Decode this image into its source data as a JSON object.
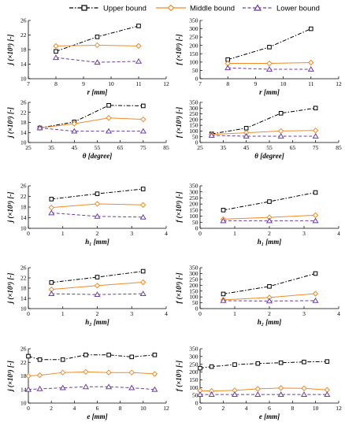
{
  "legend": {
    "upper": "Upper bound",
    "middle": "Middle bound",
    "lower": "Lower bound"
  },
  "style": {
    "upper_color": "#000000",
    "middle_color": "#f08a28",
    "lower_color": "#6a3fa0",
    "panel_bg": "#ffffff",
    "axis_color": "#000000"
  },
  "chart_data": [
    {
      "type": "line",
      "xlabel": "r [mm]",
      "ylabel": "j (×10³) [-]",
      "xlim": [
        7,
        12
      ],
      "xticks": [
        7,
        8,
        9,
        10,
        11,
        12
      ],
      "ylim": [
        10,
        26
      ],
      "yticks": [
        10,
        14,
        18,
        22,
        26
      ],
      "grid": false,
      "series": [
        {
          "name": "Upper bound",
          "x": [
            8,
            9.5,
            11
          ],
          "y": [
            17.5,
            21.5,
            24.5
          ]
        },
        {
          "name": "Middle bound",
          "x": [
            8,
            9.5,
            11
          ],
          "y": [
            19,
            19.2,
            19
          ]
        },
        {
          "name": "Lower bound",
          "x": [
            8,
            9.5,
            11
          ],
          "y": [
            15.8,
            14.5,
            14.8
          ]
        }
      ]
    },
    {
      "type": "line",
      "xlabel": "r [mm]",
      "ylabel": "f (×10³) [-]",
      "xlim": [
        7,
        12
      ],
      "xticks": [
        7,
        8,
        9,
        10,
        11,
        12
      ],
      "ylim": [
        0,
        350
      ],
      "yticks": [
        0,
        50,
        100,
        150,
        200,
        250,
        300,
        350
      ],
      "grid": false,
      "series": [
        {
          "name": "Upper bound",
          "x": [
            8,
            9.5,
            11
          ],
          "y": [
            115,
            190,
            300
          ]
        },
        {
          "name": "Middle bound",
          "x": [
            8,
            9.5,
            11
          ],
          "y": [
            92,
            92,
            97
          ]
        },
        {
          "name": "Lower bound",
          "x": [
            8,
            9.5,
            11
          ],
          "y": [
            65,
            57,
            57
          ]
        }
      ]
    },
    {
      "type": "line",
      "xlabel": "θ [degree]",
      "ylabel": "j (×10³) [-]",
      "xlim": [
        25,
        85
      ],
      "xticks": [
        25,
        35,
        45,
        55,
        65,
        75,
        85
      ],
      "ylim": [
        10,
        26
      ],
      "yticks": [
        10,
        14,
        18,
        22,
        26
      ],
      "grid": false,
      "series": [
        {
          "name": "Upper bound",
          "x": [
            30,
            45,
            60,
            75
          ],
          "y": [
            15.8,
            18.2,
            24.8,
            24.6
          ]
        },
        {
          "name": "Middle bound",
          "x": [
            30,
            45,
            60,
            75
          ],
          "y": [
            15.8,
            17.5,
            19.8,
            19.2
          ]
        },
        {
          "name": "Lower bound",
          "x": [
            30,
            45,
            60,
            75
          ],
          "y": [
            15.8,
            14.5,
            14.5,
            14.5
          ]
        }
      ]
    },
    {
      "type": "line",
      "xlabel": "θ [degree]",
      "ylabel": "f (×10³) [-]",
      "xlim": [
        25,
        85
      ],
      "xticks": [
        25,
        35,
        45,
        55,
        65,
        75,
        85
      ],
      "ylim": [
        0,
        350
      ],
      "yticks": [
        0,
        50,
        100,
        150,
        200,
        250,
        300,
        350
      ],
      "grid": false,
      "series": [
        {
          "name": "Upper bound",
          "x": [
            30,
            45,
            60,
            75
          ],
          "y": [
            75,
            125,
            255,
            300
          ]
        },
        {
          "name": "Middle bound",
          "x": [
            30,
            45,
            60,
            75
          ],
          "y": [
            70,
            85,
            100,
            105
          ]
        },
        {
          "name": "Lower bound",
          "x": [
            30,
            45,
            60,
            75
          ],
          "y": [
            62,
            55,
            55,
            55
          ]
        }
      ]
    },
    {
      "type": "line",
      "xlabel": "h₁ [mm]",
      "ylabel": "j (×10³) [-]",
      "xlim": [
        0,
        4
      ],
      "xticks": [
        0,
        1,
        2,
        3,
        4
      ],
      "ylim": [
        10,
        26
      ],
      "yticks": [
        10,
        14,
        18,
        22,
        26
      ],
      "grid": false,
      "series": [
        {
          "name": "Upper bound",
          "x": [
            0.67,
            2,
            3.33
          ],
          "y": [
            21,
            23,
            24.8
          ]
        },
        {
          "name": "Middle bound",
          "x": [
            0.67,
            2,
            3.33
          ],
          "y": [
            17.8,
            19.2,
            18.8
          ]
        },
        {
          "name": "Lower bound",
          "x": [
            0.67,
            2,
            3.33
          ],
          "y": [
            15.8,
            14.5,
            14.2
          ]
        }
      ]
    },
    {
      "type": "line",
      "xlabel": "h₁ [mm]",
      "ylabel": "f (×10³) [-]",
      "xlim": [
        0,
        4
      ],
      "xticks": [
        0,
        1,
        2,
        3,
        4
      ],
      "ylim": [
        0,
        350
      ],
      "yticks": [
        0,
        50,
        100,
        150,
        200,
        250,
        300,
        350
      ],
      "grid": false,
      "series": [
        {
          "name": "Upper bound",
          "x": [
            0.67,
            2,
            3.33
          ],
          "y": [
            150,
            220,
            295
          ]
        },
        {
          "name": "Middle bound",
          "x": [
            0.67,
            2,
            3.33
          ],
          "y": [
            75,
            90,
            108
          ]
        },
        {
          "name": "Lower bound",
          "x": [
            0.67,
            2,
            3.33
          ],
          "y": [
            62,
            62,
            62
          ]
        }
      ]
    },
    {
      "type": "line",
      "xlabel": "h₂ [mm]",
      "ylabel": "j (×10³) [-]",
      "xlim": [
        0,
        4
      ],
      "xticks": [
        0,
        1,
        2,
        3,
        4
      ],
      "ylim": [
        10,
        26
      ],
      "yticks": [
        10,
        14,
        18,
        22,
        26
      ],
      "grid": false,
      "series": [
        {
          "name": "Upper bound",
          "x": [
            0.67,
            2,
            3.33
          ],
          "y": [
            20.2,
            22.3,
            24.6
          ]
        },
        {
          "name": "Middle bound",
          "x": [
            0.67,
            2,
            3.33
          ],
          "y": [
            17.5,
            19,
            20.3
          ]
        },
        {
          "name": "Lower bound",
          "x": [
            0.67,
            2,
            3.33
          ],
          "y": [
            15.8,
            15.5,
            15.8
          ]
        }
      ]
    },
    {
      "type": "line",
      "xlabel": "h₂ [mm]",
      "ylabel": "f (×10³) [-]",
      "xlim": [
        0,
        4
      ],
      "xticks": [
        0,
        1,
        2,
        3,
        4
      ],
      "ylim": [
        0,
        350
      ],
      "yticks": [
        0,
        50,
        100,
        150,
        200,
        250,
        300,
        350
      ],
      "grid": false,
      "series": [
        {
          "name": "Upper bound",
          "x": [
            0.67,
            2,
            3.33
          ],
          "y": [
            125,
            190,
            300
          ]
        },
        {
          "name": "Middle bound",
          "x": [
            0.67,
            2,
            3.33
          ],
          "y": [
            75,
            95,
            128
          ]
        },
        {
          "name": "Lower bound",
          "x": [
            0.67,
            2,
            3.33
          ],
          "y": [
            68,
            65,
            68
          ]
        }
      ]
    },
    {
      "type": "line",
      "xlabel": "e [mm]",
      "ylabel": "j (×10³) [-]",
      "xlim": [
        0,
        12
      ],
      "xticks": [
        0,
        2,
        4,
        6,
        8,
        10,
        12
      ],
      "ylim": [
        10,
        26
      ],
      "yticks": [
        10,
        14,
        18,
        22,
        26
      ],
      "grid": false,
      "series": [
        {
          "name": "Upper bound",
          "x": [
            0,
            1,
            3,
            5,
            7,
            9,
            11
          ],
          "y": [
            23.8,
            22.8,
            22.8,
            24.2,
            24.2,
            23.6,
            24.2
          ]
        },
        {
          "name": "Middle bound",
          "x": [
            0,
            1,
            3,
            5,
            7,
            9,
            11
          ],
          "y": [
            18,
            18.2,
            19,
            19.2,
            19,
            19,
            18.6
          ]
        },
        {
          "name": "Lower bound",
          "x": [
            0,
            1,
            3,
            5,
            7,
            9,
            11
          ],
          "y": [
            14,
            14.2,
            14.5,
            14.8,
            14.8,
            14.5,
            14
          ]
        }
      ]
    },
    {
      "type": "line",
      "xlabel": "e [mm]",
      "ylabel": "f (×10³) [-]",
      "xlim": [
        0,
        12
      ],
      "xticks": [
        0,
        2,
        4,
        6,
        8,
        10,
        12
      ],
      "ylim": [
        0,
        350
      ],
      "yticks": [
        0,
        50,
        100,
        150,
        200,
        250,
        300,
        350
      ],
      "grid": false,
      "series": [
        {
          "name": "Upper bound",
          "x": [
            0,
            1,
            3,
            5,
            7,
            9,
            11
          ],
          "y": [
            225,
            235,
            248,
            255,
            260,
            265,
            268
          ]
        },
        {
          "name": "Middle bound",
          "x": [
            0,
            1,
            3,
            5,
            7,
            9,
            11
          ],
          "y": [
            80,
            78,
            82,
            92,
            97,
            95,
            85
          ]
        },
        {
          "name": "Lower bound",
          "x": [
            0,
            1,
            3,
            5,
            7,
            9,
            11
          ],
          "y": [
            55,
            55,
            55,
            55,
            55,
            55,
            55
          ]
        }
      ]
    }
  ]
}
